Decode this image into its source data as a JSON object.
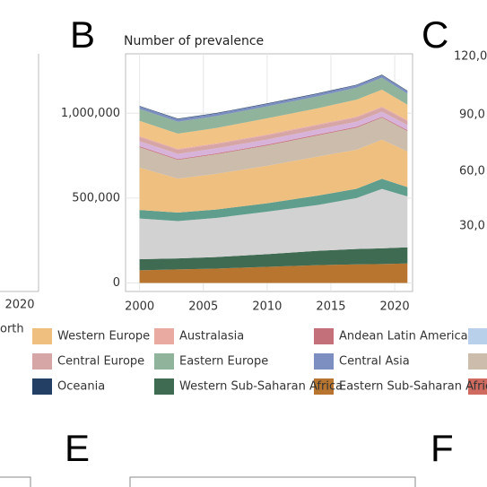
{
  "panel_letters": [
    "B",
    "C",
    "E",
    "F"
  ],
  "fragments": {
    "left_x_tick": "2020",
    "left_legend_text": "orth",
    "panel_C_ticks": [
      "120,0",
      "90,0",
      "60,0",
      "30,0"
    ]
  },
  "chart_data": {
    "type": "area",
    "title": "Number of prevalence",
    "x": [
      2000,
      2003,
      2006,
      2010,
      2014,
      2017,
      2019,
      2021
    ],
    "xlim": [
      1998.9,
      2021.4
    ],
    "xticks": [
      2000,
      2005,
      2010,
      2015,
      2020
    ],
    "ylim": [
      -50000,
      1350000
    ],
    "yticks": [
      0,
      {
        "value": 500000,
        "label": "500,000"
      },
      {
        "value": 1000000,
        "label": "1,000,000"
      }
    ],
    "grid": true,
    "stacked": true,
    "series": [
      {
        "name": "Eastern Sub-Saharan Africa",
        "color": "#b8752f",
        "values": [
          75000,
          80000,
          85000,
          95000,
          105000,
          110000,
          112000,
          115000
        ]
      },
      {
        "name": "Western Sub-Saharan Africa",
        "color": "#3e6b52",
        "values": [
          65000,
          65000,
          68000,
          75000,
          85000,
          90000,
          92000,
          95000
        ]
      },
      {
        "color": "#d2d2d2",
        "values": [
          240000,
          220000,
          230000,
          250000,
          270000,
          300000,
          350000,
          300000
        ]
      },
      {
        "color": "#5f9e8c",
        "values": [
          50000,
          50000,
          50000,
          50000,
          55000,
          55000,
          60000,
          55000
        ]
      },
      {
        "name": "Western Europe",
        "color": "#efbf80",
        "values": [
          250000,
          200000,
          210000,
          220000,
          230000,
          230000,
          230000,
          210000
        ]
      },
      {
        "color": "#cbbcac",
        "values": [
          120000,
          110000,
          115000,
          120000,
          125000,
          130000,
          130000,
          120000
        ]
      },
      {
        "name": "Andean Latin America",
        "color": "#c4707a",
        "values": [
          5000,
          5000,
          5000,
          5000,
          5000,
          5000,
          5000,
          5000
        ]
      },
      {
        "color": "#d8b3d9",
        "values": [
          30000,
          30000,
          30000,
          30000,
          30000,
          30000,
          30000,
          30000
        ]
      },
      {
        "name": "Central Europe",
        "color": "#d6a6a6",
        "values": [
          25000,
          25000,
          25000,
          25000,
          25000,
          25000,
          25000,
          25000
        ]
      },
      {
        "name": "Australasia",
        "color": "#e9aaa2",
        "values": [
          5000,
          5000,
          5000,
          5000,
          5000,
          5000,
          5000,
          5000
        ]
      },
      {
        "color": "#f1c384",
        "values": [
          90000,
          90000,
          90000,
          95000,
          95000,
          100000,
          100000,
          90000
        ]
      },
      {
        "name": "Eastern Europe",
        "color": "#8fb49b",
        "values": [
          70000,
          70000,
          70000,
          70000,
          70000,
          70000,
          70000,
          65000
        ]
      },
      {
        "name": "Central Asia",
        "color": "#7c8fc0",
        "values": [
          15000,
          15000,
          15000,
          15000,
          15000,
          15000,
          15000,
          15000
        ]
      },
      {
        "name": "Oceania",
        "color": "#233f63",
        "values": [
          3000,
          3000,
          3000,
          3000,
          3000,
          3000,
          3000,
          3000
        ]
      }
    ]
  }
}
